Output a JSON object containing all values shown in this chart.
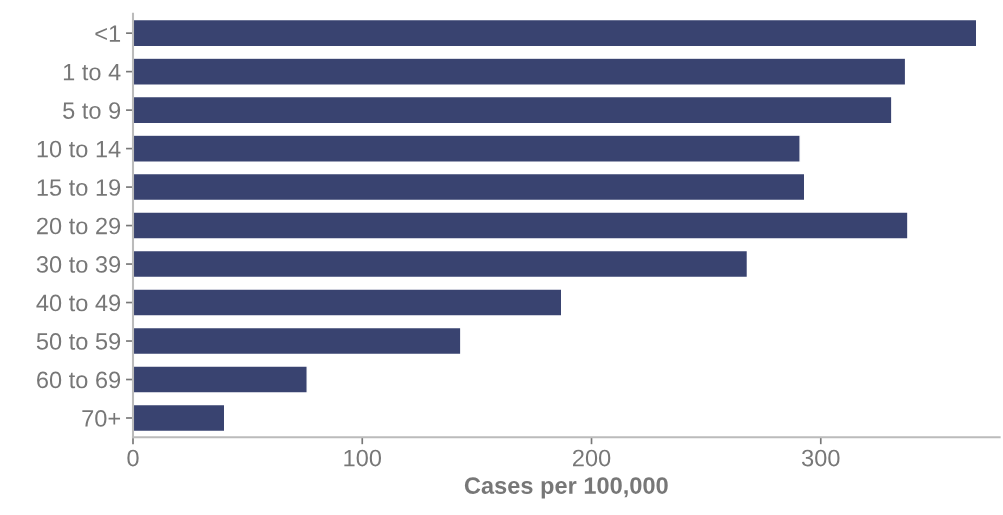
{
  "chart_data": {
    "type": "bar",
    "orientation": "horizontal",
    "xlabel": "Cases per 100,000",
    "categories": [
      "<1",
      "1 to 4",
      "5 to 9",
      "10 to 14",
      "15 to 19",
      "20 to 29",
      "30 to 39",
      "40 to 49",
      "50 to 59",
      "60 to 69",
      "70+"
    ],
    "values": [
      368,
      337,
      331,
      291,
      293,
      338,
      268,
      187,
      143,
      76,
      40
    ],
    "color": "#394370",
    "xlim": [
      0,
      378
    ],
    "xticks": [
      0,
      100,
      200,
      300
    ],
    "grid": false,
    "legend": false
  }
}
